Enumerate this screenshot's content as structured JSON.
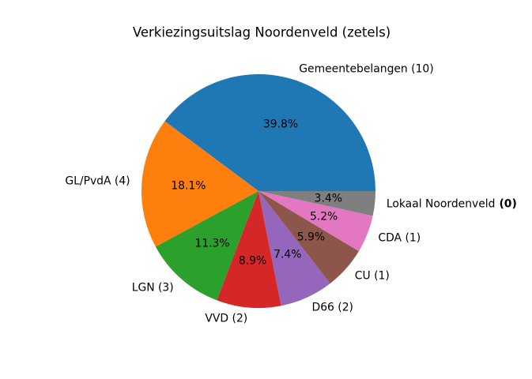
{
  "title": "Verkiezingsuitslag Noordenveld (zetels)",
  "chart_data": {
    "type": "pie",
    "title": "Verkiezingsuitslag Noordenveld (zetels)",
    "legend": "none",
    "background_color": "#ffffff",
    "text_color": "#000000",
    "start_angle_deg": 0,
    "direction": "counterclockwise",
    "slices": [
      {
        "party": "Gemeentebelangen",
        "seats": 10,
        "label": "Gemeentebelangen (10)",
        "pct": 39.8,
        "pct_label": "39.8%",
        "color": "#1f77b4",
        "bold_seats": false
      },
      {
        "party": "GL/PvdA",
        "seats": 4,
        "label": "GL/PvdA (4)",
        "pct": 18.1,
        "pct_label": "18.1%",
        "color": "#ff7f0e",
        "bold_seats": false
      },
      {
        "party": "LGN",
        "seats": 3,
        "label": "LGN (3)",
        "pct": 11.3,
        "pct_label": "11.3%",
        "color": "#2ca02c",
        "bold_seats": false
      },
      {
        "party": "VVD",
        "seats": 2,
        "label": "VVD (2)",
        "pct": 8.9,
        "pct_label": "8.9%",
        "color": "#d62728",
        "bold_seats": false
      },
      {
        "party": "D66",
        "seats": 2,
        "label": "D66 (2)",
        "pct": 7.4,
        "pct_label": "7.4%",
        "color": "#9467bd",
        "bold_seats": false
      },
      {
        "party": "CU",
        "seats": 1,
        "label": "CU (1)",
        "pct": 5.9,
        "pct_label": "5.9%",
        "color": "#8c564b",
        "bold_seats": false
      },
      {
        "party": "CDA",
        "seats": 1,
        "label": "CDA (1)",
        "pct": 5.2,
        "pct_label": "5.2%",
        "color": "#e377c2",
        "bold_seats": false
      },
      {
        "party": "Lokaal Noordenveld",
        "seats": 0,
        "label": "Lokaal Noordenveld (0)",
        "pct": 3.4,
        "pct_label": "3.4%",
        "color": "#7f7f7f",
        "bold_seats": true
      }
    ]
  }
}
